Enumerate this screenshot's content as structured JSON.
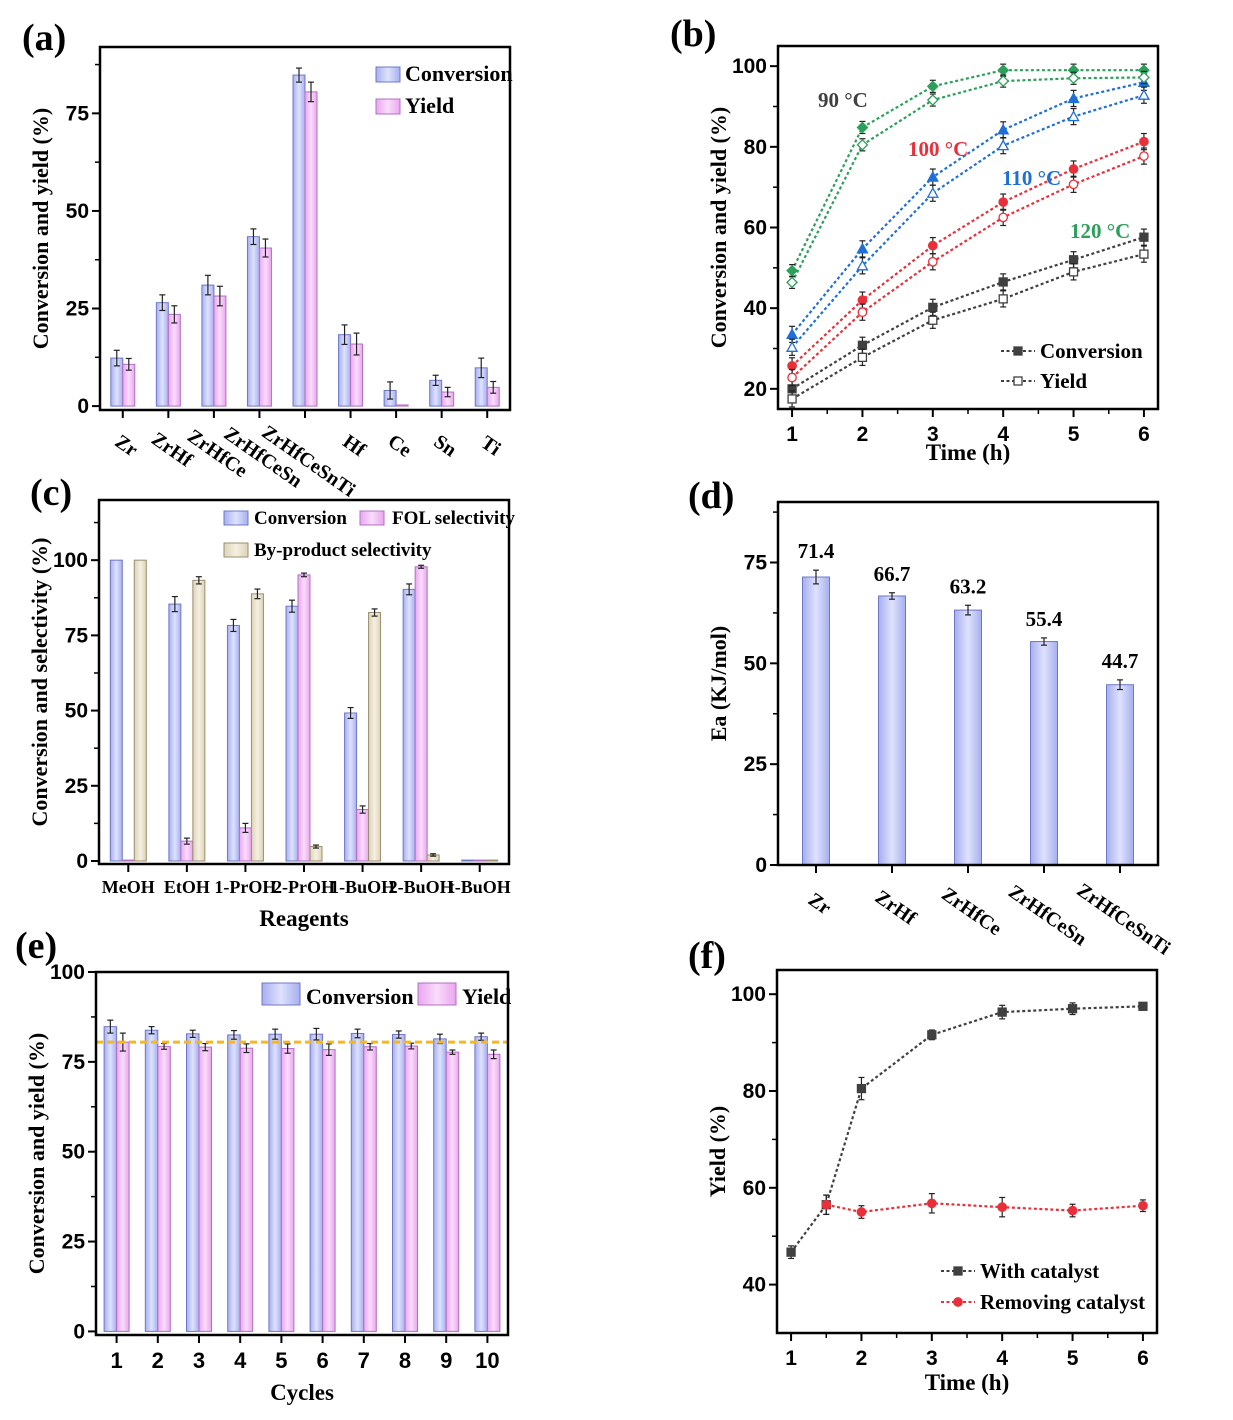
{
  "panel_labels": [
    "(a)",
    "(b)",
    "(c)",
    "(d)",
    "(e)",
    "(f)"
  ],
  "chart_data": [
    {
      "type": "bar",
      "categories": [
        "Zr",
        "ZrHf",
        "ZrHfCe",
        "ZrHfCeSn",
        "ZrHfCeSnTi",
        "Hf",
        "Ce",
        "Sn",
        "Ti"
      ],
      "series": [
        {
          "name": "Conversion",
          "values": [
            12.3,
            26.5,
            31.0,
            43.4,
            84.8,
            18.3,
            4.0,
            6.6,
            9.8
          ],
          "errors": [
            2.0,
            2.0,
            2.5,
            2.0,
            1.8,
            2.5,
            2.2,
            1.3,
            2.5
          ],
          "color": "#b4bcf5"
        },
        {
          "name": "Yield",
          "values": [
            10.7,
            23.5,
            28.2,
            40.5,
            80.5,
            15.9,
            0.3,
            3.6,
            4.8
          ],
          "errors": [
            1.5,
            2.2,
            2.5,
            2.3,
            2.5,
            2.8,
            0,
            1.2,
            1.5
          ],
          "color": "#f2b8f4"
        }
      ],
      "xlabel": "",
      "ylabel": "Conversion and yield (%)",
      "ylim": [
        -1,
        92
      ],
      "yticks": [
        "0",
        "25",
        "50",
        "75"
      ],
      "legend": "top-right"
    },
    {
      "type": "line",
      "x": [
        1,
        2,
        3,
        4,
        5,
        6
      ],
      "groups": [
        {
          "label": "90 °C",
          "color": "#404040",
          "marker": "square",
          "conversion": [
            20.0,
            30.8,
            40.2,
            46.5,
            52.0,
            57.6
          ],
          "yield": [
            17.5,
            27.8,
            37.0,
            42.3,
            49.0,
            53.4
          ],
          "error": 2
        },
        {
          "label": "100 °C",
          "color": "#e8303a",
          "marker": "circle",
          "conversion": [
            25.7,
            42.0,
            55.5,
            66.3,
            74.5,
            81.3
          ],
          "yield": [
            22.8,
            39.0,
            51.5,
            62.5,
            70.7,
            77.7
          ],
          "error": 2
        },
        {
          "label": "110 °C",
          "color": "#1f6fd6",
          "marker": "triangle",
          "conversion": [
            33.5,
            54.7,
            72.5,
            84.2,
            92.0,
            96.0
          ],
          "yield": [
            30.3,
            50.5,
            68.5,
            80.3,
            87.5,
            92.8
          ],
          "error": 2
        },
        {
          "label": "120 °C",
          "color": "#2ca05a",
          "marker": "diamond",
          "conversion": [
            49.3,
            84.8,
            95.0,
            99.0,
            99.0,
            99.0
          ],
          "yield": [
            46.4,
            80.5,
            91.6,
            96.3,
            97.0,
            97.2
          ],
          "error": 1.5
        }
      ],
      "legend_entries": [
        "Conversion",
        "Yield"
      ],
      "xlabel": "Time (h)",
      "ylabel": "Conversion and yield (%)",
      "xlim": [
        0.8,
        6.2
      ],
      "ylim": [
        15,
        105
      ],
      "xticks": [
        "1",
        "2",
        "3",
        "4",
        "5",
        "6"
      ],
      "yticks": [
        "20",
        "40",
        "60",
        "80",
        "100"
      ],
      "legend": "bottom-right"
    },
    {
      "type": "bar",
      "categories": [
        "MeOH",
        "EtOH",
        "1-PrOH",
        "2-PrOH",
        "1-BuOH",
        "2-BuOH",
        "t-BuOH"
      ],
      "series": [
        {
          "name": "Conversion",
          "values": [
            100,
            85.4,
            78.3,
            84.7,
            49.2,
            90.3,
            0.3
          ],
          "errors": [
            0,
            2.5,
            2.0,
            2.0,
            1.8,
            1.8,
            0
          ],
          "color": "#b4bcf5"
        },
        {
          "name": "FOL selectivity",
          "values": [
            0.3,
            6.6,
            11.0,
            95.1,
            17.1,
            97.8,
            0.3
          ],
          "errors": [
            0,
            1.0,
            1.5,
            0.6,
            1.2,
            0.5,
            0
          ],
          "color": "#f2b8f4"
        },
        {
          "name": "By-product selectivity",
          "values": [
            100,
            93.3,
            88.8,
            4.8,
            82.6,
            2.0,
            0.3
          ],
          "errors": [
            0,
            1.2,
            1.6,
            0.5,
            1.2,
            0.4,
            0
          ],
          "color": "#e9e1cb"
        }
      ],
      "xlabel": "Reagents",
      "ylabel": "Conversion and selectivity (%)",
      "ylim": [
        -1,
        120
      ],
      "yticks": [
        "0",
        "25",
        "50",
        "75",
        "100"
      ],
      "legend": "top-right"
    },
    {
      "type": "bar",
      "categories": [
        "Zr",
        "ZrHf",
        "ZrHfCe",
        "ZrHfCeSn",
        "ZrHfCeSnTi"
      ],
      "series": [
        {
          "values": [
            71.4,
            66.7,
            63.2,
            55.4,
            44.7
          ],
          "errors": [
            1.7,
            0.8,
            1.2,
            0.9,
            1.2
          ],
          "color": "#b4bcf5"
        }
      ],
      "data_labels": [
        "71.4",
        "66.7",
        "63.2",
        "55.4",
        "44.7"
      ],
      "xlabel": "",
      "ylabel": "Ea (KJ/mol)",
      "ylim": [
        0,
        90
      ],
      "yticks": [
        "0",
        "25",
        "50",
        "75"
      ]
    },
    {
      "type": "bar",
      "categories": [
        "1",
        "2",
        "3",
        "4",
        "5",
        "6",
        "7",
        "8",
        "9",
        "10"
      ],
      "series": [
        {
          "name": "Conversion",
          "values": [
            84.8,
            83.8,
            82.8,
            82.5,
            82.7,
            82.7,
            82.9,
            82.6,
            81.4,
            82.0
          ],
          "errors": [
            1.8,
            1.0,
            1.0,
            1.2,
            1.4,
            1.6,
            1.2,
            1.0,
            1.3,
            1.0
          ],
          "color": "#b4bcf5"
        },
        {
          "name": "Yield",
          "values": [
            80.5,
            79.3,
            79.1,
            78.8,
            78.7,
            78.4,
            79.2,
            79.4,
            77.7,
            77.1
          ],
          "errors": [
            2.5,
            0.8,
            1.0,
            1.2,
            1.3,
            1.6,
            0.9,
            0.8,
            0.6,
            1.2
          ],
          "color": "#f2b8f4"
        }
      ],
      "reference_line": {
        "value": 80.5,
        "color": "#f5b820"
      },
      "xlabel": "Cycles",
      "ylabel": "Conversion and yield (%)",
      "ylim": [
        -1,
        100
      ],
      "yticks": [
        "0",
        "25",
        "50",
        "75",
        "100"
      ],
      "legend": "top-right"
    },
    {
      "type": "line",
      "series": [
        {
          "name": "With catalyst",
          "color": "#404040",
          "marker": "square",
          "x": [
            1,
            1.5,
            2,
            3,
            4,
            5,
            6
          ],
          "y": [
            46.7,
            56.5,
            80.5,
            91.6,
            96.3,
            97.0,
            97.5
          ],
          "errors": [
            1.3,
            2.0,
            2.3,
            1.0,
            1.4,
            1.2,
            0.5
          ]
        },
        {
          "name": "Removing catalyst",
          "color": "#e8303a",
          "marker": "circle",
          "x": [
            1.5,
            2,
            3,
            4,
            5,
            6
          ],
          "y": [
            56.5,
            55.0,
            56.8,
            56.0,
            55.3,
            56.3
          ],
          "errors": [
            2.0,
            1.3,
            2.0,
            2.0,
            1.3,
            1.2
          ]
        }
      ],
      "xlabel": "Time (h)",
      "ylabel": "Yield (%)",
      "xlim": [
        0.8,
        6.2
      ],
      "ylim": [
        30,
        105
      ],
      "xticks": [
        "1",
        "2",
        "3",
        "4",
        "5",
        "6"
      ],
      "yticks": [
        "40",
        "60",
        "80",
        "100"
      ],
      "legend": "bottom-right"
    }
  ]
}
